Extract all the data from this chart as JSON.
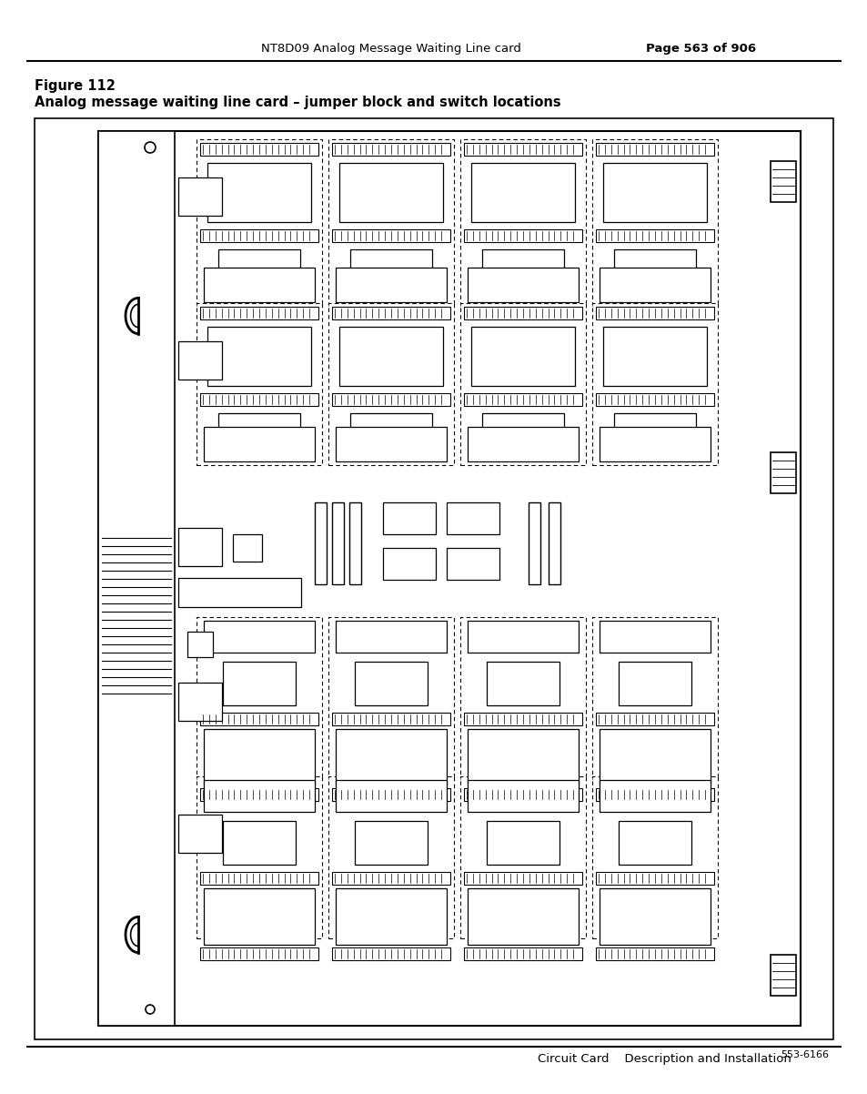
{
  "header_text": "NT8D09 Analog Message Waiting Line card",
  "page_text": "Page 563 of 906",
  "figure_title_line1": "Figure 112",
  "figure_title_line2": "Analog message waiting line card – jumper block and switch locations",
  "footer_text": "Circuit Card    Description and Installation",
  "figure_number": "553-6166",
  "bg_color": "#ffffff"
}
